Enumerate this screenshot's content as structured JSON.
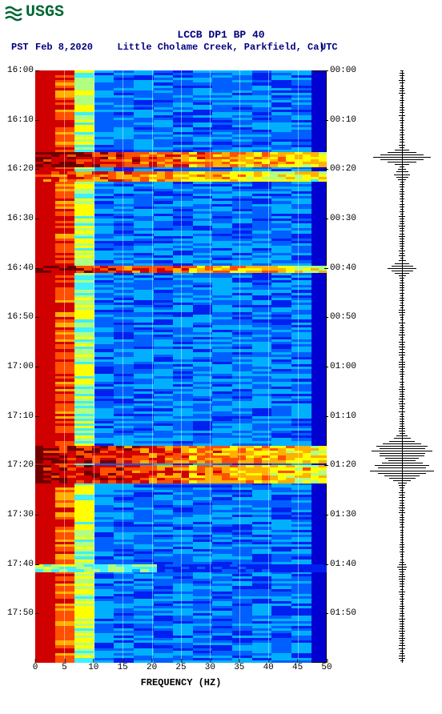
{
  "logo_text": "USGS",
  "logo_color": "#006633",
  "title": "LCCB DP1 BP 40",
  "subtitle": "Little Cholame Creek, Parkfield, Ca)",
  "date": "Feb 8,2020",
  "left_tz": "PST",
  "right_tz": "UTC",
  "x_label": "FREQUENCY (HZ)",
  "plot": {
    "bg_color": "#0000d0",
    "x_min": 0,
    "x_max": 50,
    "x_ticks": [
      0,
      5,
      10,
      15,
      20,
      25,
      30,
      35,
      40,
      45,
      50
    ],
    "pst_labels": [
      "16:00",
      "16:10",
      "16:20",
      "16:30",
      "16:40",
      "16:50",
      "17:00",
      "17:10",
      "17:20",
      "17:30",
      "17:40",
      "17:50"
    ],
    "utc_labels": [
      "00:00",
      "00:10",
      "00:20",
      "00:30",
      "00:40",
      "00:50",
      "01:00",
      "01:10",
      "01:20",
      "01:30",
      "01:40",
      "01:50"
    ],
    "y_rows": 240,
    "palette": [
      "#0000d0",
      "#0020f0",
      "#0060ff",
      "#00b0ff",
      "#40f0ff",
      "#b0ff80",
      "#ffff00",
      "#ffb000",
      "#ff5000",
      "#d00000",
      "#700000"
    ],
    "low_freq_width": 0.22,
    "events": [
      {
        "row_start": 33,
        "row_end": 38,
        "intensity": 1.0,
        "extent": 1.0
      },
      {
        "row_start": 41,
        "row_end": 44,
        "intensity": 0.9,
        "extent": 1.0
      },
      {
        "row_start": 79,
        "row_end": 81,
        "intensity": 1.0,
        "extent": 1.0
      },
      {
        "row_start": 152,
        "row_end": 158,
        "intensity": 1.0,
        "extent": 1.0
      },
      {
        "row_start": 160,
        "row_end": 166,
        "intensity": 1.0,
        "extent": 1.0
      },
      {
        "row_start": 200,
        "row_end": 202,
        "intensity": 0.55,
        "extent": 0.4
      }
    ],
    "seismogram": {
      "baseline_amp": 2,
      "events": [
        {
          "row": 35,
          "amp": 36
        },
        {
          "row": 42,
          "amp": 10
        },
        {
          "row": 80,
          "amp": 18
        },
        {
          "row": 150,
          "amp": 14
        },
        {
          "row": 152,
          "amp": 32
        },
        {
          "row": 154,
          "amp": 38
        },
        {
          "row": 156,
          "amp": 28
        },
        {
          "row": 160,
          "amp": 34
        },
        {
          "row": 162,
          "amp": 40
        },
        {
          "row": 164,
          "amp": 22
        },
        {
          "row": 201,
          "amp": 6
        }
      ]
    }
  }
}
